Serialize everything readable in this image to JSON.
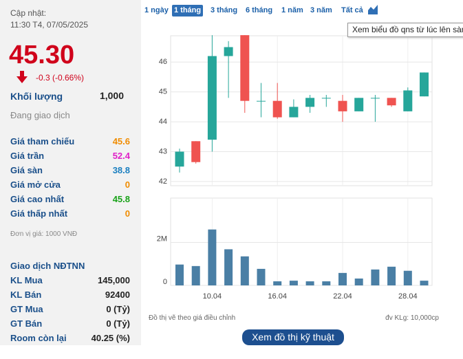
{
  "header": {
    "update_label": "Cập nhật:",
    "update_time": "11:30 T4, 07/05/2025",
    "price": "45.30",
    "change": "-0.3 (-0.66%)",
    "volume_label": "Khối lượng",
    "volume": "1,000",
    "status": "Đang giao dịch"
  },
  "price_table": [
    [
      "Giá tham chiếu",
      "45.6"
    ],
    [
      "Giá trần",
      "52.4"
    ],
    [
      "Giá sàn",
      "38.8"
    ],
    [
      "Giá mở cửa",
      "0"
    ],
    [
      "Giá cao nhất",
      "45.8"
    ],
    [
      "Giá thấp nhất",
      "0"
    ]
  ],
  "unit_note": "Đơn vị giá: 1000 VNĐ",
  "foreign": {
    "title": "Giao dịch NĐTNN",
    "rows": [
      [
        "KL Mua",
        "145,000"
      ],
      [
        "KL Bán",
        "92400"
      ],
      [
        "GT Mua",
        "0 (Tỷ)"
      ],
      [
        "GT Bán",
        "0 (Tỷ)"
      ],
      [
        "Room còn lại",
        "40.25 (%)"
      ]
    ]
  },
  "tabs": [
    "1 ngày",
    "1 tháng",
    "3 tháng",
    "6 tháng",
    "1 năm",
    "3 năm",
    "Tất cả"
  ],
  "active_tab": 1,
  "tooltip": "Xem biểu đồ qns từ lúc lên sàn",
  "chart_data": [
    {
      "type": "candlestick",
      "open": [
        42.5,
        43.35,
        43.4,
        46.2,
        46.9,
        44.7,
        44.7,
        44.15,
        44.5,
        44.8,
        44.7,
        44.35,
        44.8,
        44.8,
        44.35,
        44.85
      ],
      "high": [
        43.1,
        43.35,
        46.9,
        46.7,
        46.9,
        45.3,
        45.3,
        44.75,
        44.9,
        44.9,
        44.9,
        44.8,
        44.9,
        44.8,
        45.15,
        45.65
      ],
      "low": [
        42.3,
        42.6,
        43.0,
        44.8,
        44.3,
        44.15,
        44.1,
        44.15,
        44.3,
        44.5,
        44.0,
        44.35,
        44.0,
        44.5,
        44.35,
        44.85
      ],
      "close": [
        43.0,
        42.65,
        46.2,
        46.5,
        44.7,
        44.7,
        44.15,
        44.5,
        44.8,
        44.8,
        44.35,
        44.8,
        44.8,
        44.55,
        45.05,
        45.65
      ],
      "up_color": "#26a69a",
      "down_color": "#ef5350",
      "ylim": [
        41.86,
        46.88
      ],
      "yticks": [
        42,
        43,
        44,
        45,
        46
      ],
      "grid": true
    },
    {
      "type": "bar",
      "categories": [
        null,
        null,
        "10.04",
        null,
        null,
        null,
        "16.04",
        null,
        null,
        null,
        "22.04",
        null,
        null,
        null,
        "28.04",
        null
      ],
      "values": [
        970000,
        900000,
        2600000,
        1680000,
        1350000,
        770000,
        190000,
        220000,
        190000,
        190000,
        580000,
        320000,
        740000,
        870000,
        680000,
        220000
      ],
      "color": "#4a7fa5",
      "ylim": [
        0,
        4060000
      ],
      "yticks": [
        0,
        {
          "value": 2000000,
          "label": "2M"
        }
      ],
      "grid": true
    }
  ],
  "notes": {
    "adjusted": "Đồ thị vẽ theo giá điều chỉnh",
    "unit": "đv KLg: 10,000cp"
  },
  "button": "Xem đồ thị kỹ thuật"
}
